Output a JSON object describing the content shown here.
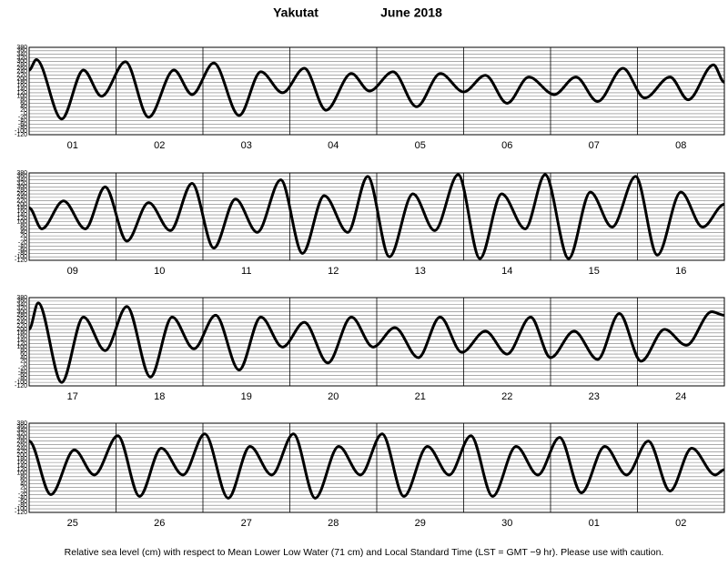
{
  "title": "Yakutat",
  "subtitle": "June 2018",
  "footer": "Relative sea level (cm) with respect to Mean Lower Low Water (71 cm) and Local Standard Time (LST = GMT −9 hr). Please use with caution.",
  "chart_data": [
    {
      "type": "line",
      "color": "#000000",
      "grid": true,
      "categories": [
        "01",
        "02",
        "03",
        "04",
        "05",
        "06",
        "07",
        "08"
      ],
      "xlim": [
        0,
        192
      ],
      "ylim": [
        -120,
        380
      ],
      "yticks": [
        -120,
        -100,
        -80,
        -60,
        -40,
        -20,
        0,
        20,
        40,
        60,
        80,
        100,
        120,
        140,
        160,
        180,
        200,
        220,
        240,
        260,
        280,
        300,
        320,
        340,
        360,
        380
      ],
      "x": [
        0,
        2,
        9,
        15,
        20,
        26.6,
        33,
        40,
        45,
        51,
        58,
        64,
        70,
        76,
        82,
        89,
        94,
        100.5,
        107,
        113.6,
        120,
        126,
        132,
        138,
        145,
        151,
        157,
        164,
        170,
        177,
        182,
        189,
        192
      ],
      "values": [
        250,
        310,
        -30,
        250,
        100,
        297,
        -20,
        250,
        110,
        290,
        -10,
        240,
        120,
        260,
        20,
        230,
        130,
        240,
        40,
        230,
        125,
        220,
        60,
        210,
        110,
        210,
        70,
        260,
        90,
        210,
        80,
        280,
        180
      ]
    },
    {
      "type": "line",
      "color": "#000000",
      "grid": true,
      "categories": [
        "09",
        "10",
        "11",
        "12",
        "13",
        "14",
        "15",
        "16"
      ],
      "xlim": [
        0,
        192
      ],
      "ylim": [
        -120,
        380
      ],
      "yticks": [
        -120,
        -100,
        -80,
        -60,
        -40,
        -20,
        0,
        20,
        40,
        60,
        80,
        100,
        120,
        140,
        160,
        180,
        200,
        220,
        240,
        260,
        280,
        300,
        320,
        340,
        360,
        380
      ],
      "x": [
        0,
        3.5,
        9.5,
        15.5,
        21,
        27,
        33,
        39,
        45,
        51,
        57,
        63,
        69.5,
        75.5,
        81.5,
        88,
        93.5,
        99.5,
        106,
        112,
        118.5,
        124.5,
        130.5,
        137,
        142.5,
        149,
        155,
        161,
        167.5,
        173.5,
        180,
        186,
        192
      ],
      "values": [
        180,
        60,
        220,
        60,
        300,
        -10,
        210,
        50,
        320,
        -50,
        230,
        40,
        340,
        -80,
        250,
        40,
        360,
        -100,
        260,
        50,
        370,
        -110,
        260,
        60,
        370,
        -110,
        270,
        70,
        360,
        -90,
        270,
        70,
        200
      ]
    },
    {
      "type": "line",
      "color": "#000000",
      "grid": true,
      "categories": [
        "17",
        "18",
        "19",
        "20",
        "21",
        "22",
        "23",
        "24"
      ],
      "xlim": [
        0,
        192
      ],
      "ylim": [
        -120,
        380
      ],
      "yticks": [
        -120,
        -100,
        -80,
        -60,
        -40,
        -20,
        0,
        20,
        40,
        60,
        80,
        100,
        120,
        140,
        160,
        180,
        200,
        220,
        240,
        260,
        280,
        300,
        320,
        340,
        360,
        380
      ],
      "x": [
        0,
        2.5,
        9,
        15,
        21,
        27,
        33.5,
        39.5,
        45.5,
        51.5,
        58,
        64,
        70,
        76,
        82.5,
        89,
        95,
        101,
        107.5,
        113.5,
        119.5,
        126,
        132,
        138.5,
        144,
        150.5,
        157,
        163,
        169,
        175.5,
        181.5,
        188.5,
        192
      ],
      "values": [
        200,
        350,
        -100,
        270,
        80,
        330,
        -70,
        270,
        90,
        280,
        -30,
        270,
        100,
        240,
        10,
        270,
        100,
        210,
        40,
        270,
        70,
        190,
        60,
        270,
        40,
        190,
        30,
        290,
        20,
        200,
        110,
        300,
        280
      ]
    },
    {
      "type": "line",
      "color": "#000000",
      "grid": true,
      "categories": [
        "25",
        "26",
        "27",
        "28",
        "29",
        "30",
        "01",
        "02"
      ],
      "xlim": [
        0,
        192
      ],
      "ylim": [
        -120,
        380
      ],
      "yticks": [
        -120,
        -100,
        -80,
        -60,
        -40,
        -20,
        0,
        20,
        40,
        60,
        80,
        100,
        120,
        140,
        160,
        180,
        200,
        220,
        240,
        260,
        280,
        300,
        320,
        340,
        360,
        380
      ],
      "x": [
        0,
        6,
        12.5,
        18,
        24.5,
        30.5,
        36.5,
        42.5,
        48.5,
        55,
        61,
        67,
        73,
        79,
        85.5,
        91.5,
        97.5,
        103.5,
        110,
        116,
        122,
        128,
        134.5,
        140.5,
        146.5,
        152.5,
        159,
        165,
        171,
        177,
        183,
        189.5,
        192
      ],
      "values": [
        280,
        -20,
        230,
        90,
        310,
        -30,
        240,
        90,
        320,
        -40,
        250,
        90,
        320,
        -40,
        250,
        90,
        320,
        -30,
        250,
        90,
        310,
        -30,
        250,
        90,
        300,
        -10,
        250,
        90,
        280,
        0,
        240,
        90,
        120
      ]
    }
  ]
}
